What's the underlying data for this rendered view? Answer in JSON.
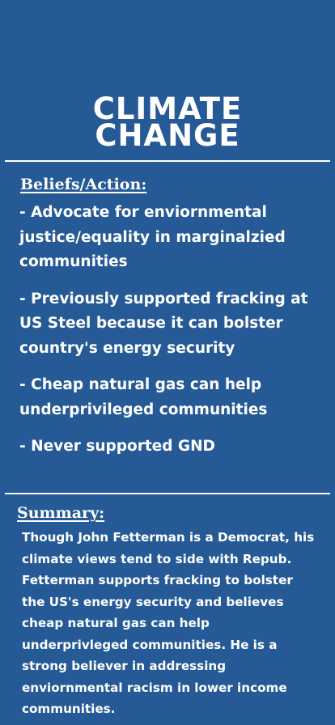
{
  "title": {
    "line1": "CLIMATE",
    "line2": "CHANGE"
  },
  "beliefs": {
    "label": "Beliefs/Action:",
    "items": [
      "- Advocate for enviornmental justice/equality in marginalzied communities",
      "- Previously supported fracking at US Steel because it can bolster country's energy security",
      "- Cheap natural gas can help underprivileged communities",
      "- Never supported GND"
    ]
  },
  "summary": {
    "label": "Summary:",
    "text": "Though John Fetterman is a Democrat, his climate views tend to side with Repub. Fetterman supports fracking to bolster the US's energy security and believes cheap natural gas can help underprivleged communities. He is a strong believer in addressing enviornmental racism in lower income communities."
  },
  "colors": {
    "background": "#255a96",
    "text": "#ffffff"
  }
}
